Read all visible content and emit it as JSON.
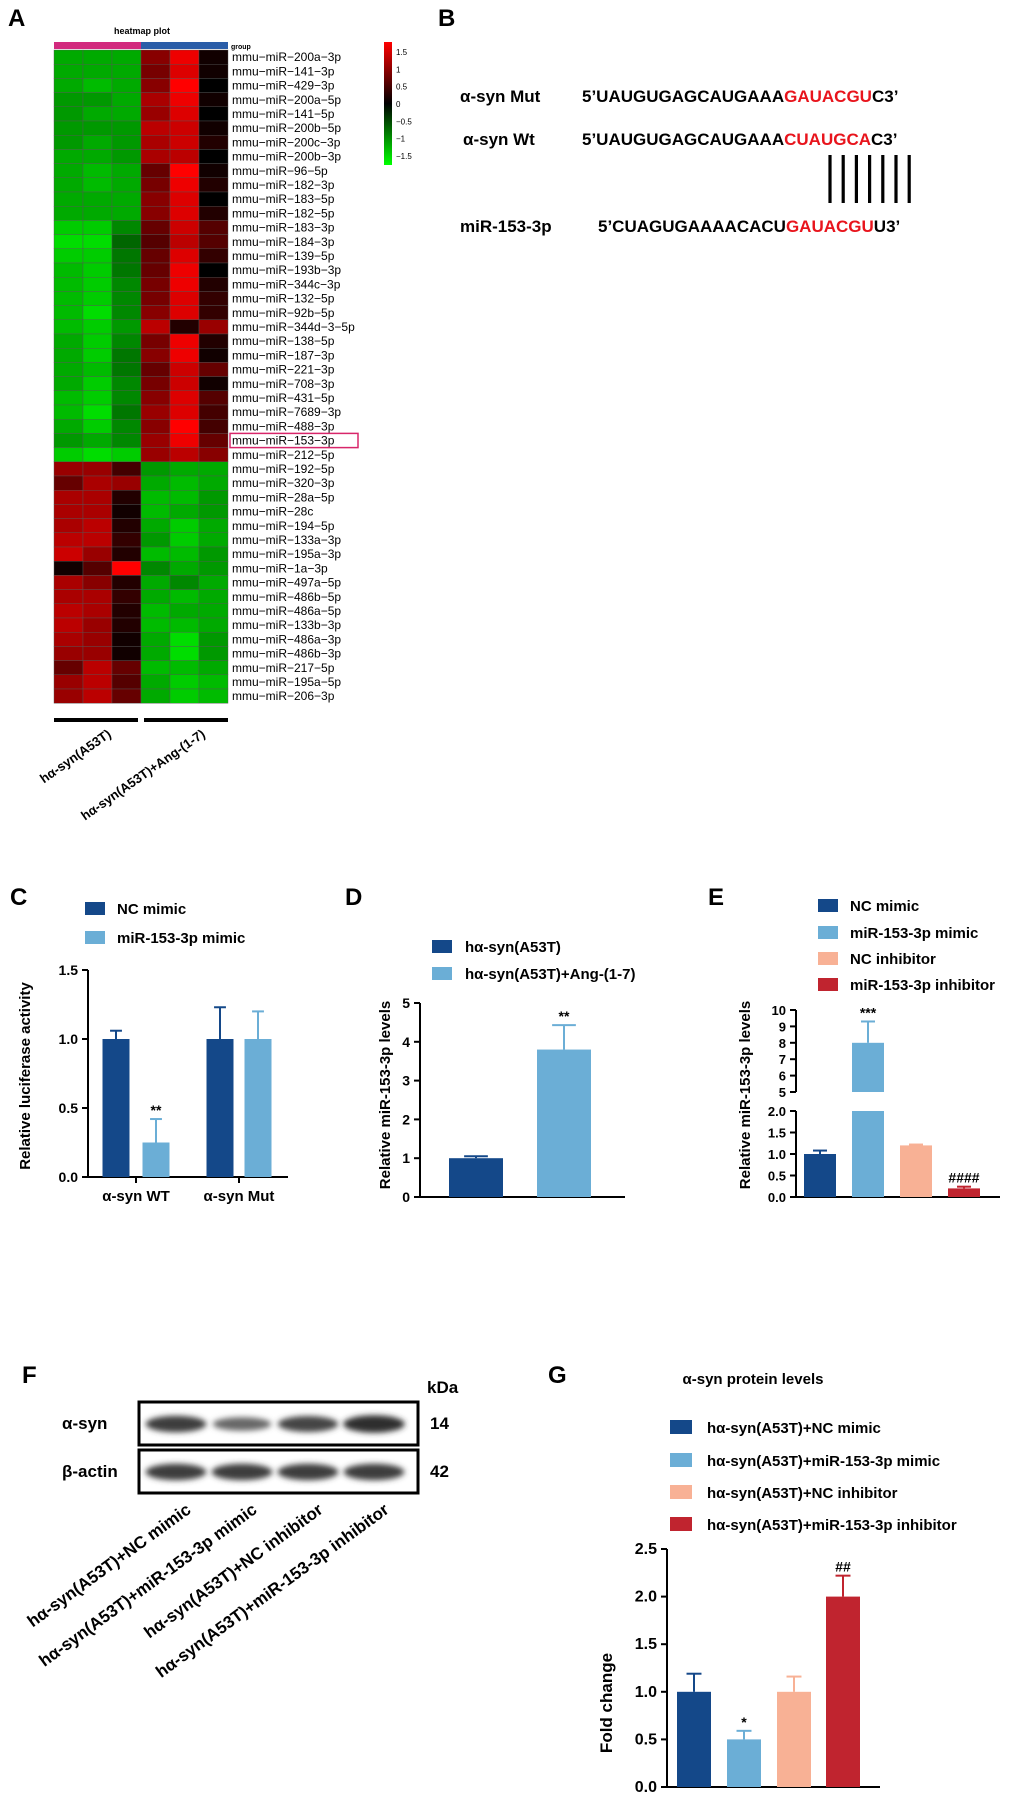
{
  "panels": {
    "A": "A",
    "B": "B",
    "C": "C",
    "D": "D",
    "E": "E",
    "F": "F",
    "G": "G"
  },
  "colors": {
    "dark_blue": "#144889",
    "light_blue": "#6BAED6",
    "salmon": "#F8B195",
    "crimson": "#C0242F",
    "seq_red": "#E8141C",
    "group_magenta": "#D22A7E",
    "group_blue": "#2A5DA8",
    "highlight": "#D8266A"
  },
  "chart_data": [
    {
      "id": "A",
      "type": "heatmap",
      "title": "heatmap plot",
      "group_label": "group",
      "groups": [
        "hα-syn(A53T)",
        "hα-syn(A53T)+Ang-(1-7)"
      ],
      "colorbar_ticks": [
        "1.5",
        "1",
        "0.5",
        "0",
        "−0.5",
        "−1",
        "−1.5"
      ],
      "range": [
        -1.5,
        1.5
      ],
      "highlight_row": "mmu−miR−153−3p",
      "rows": [
        {
          "name": "mmu−miR−200a−3p",
          "values": [
            -1.0,
            -1.0,
            -1.0,
            0.8,
            1.4,
            0.1
          ]
        },
        {
          "name": "mmu−miR−141−3p",
          "values": [
            -1.0,
            -1.0,
            -1.0,
            0.7,
            1.3,
            0.1
          ]
        },
        {
          "name": "mmu−miR−429−3p",
          "values": [
            -1.0,
            -1.1,
            -1.0,
            0.8,
            1.5,
            0.0
          ]
        },
        {
          "name": "mmu−miR−200a−5p",
          "values": [
            -0.9,
            -0.9,
            -1.0,
            1.0,
            1.4,
            0.1
          ]
        },
        {
          "name": "mmu−miR−141−5p",
          "values": [
            -0.9,
            -1.0,
            -1.0,
            0.9,
            1.3,
            0.0
          ]
        },
        {
          "name": "mmu−miR−200b−5p",
          "values": [
            -0.9,
            -0.9,
            -0.9,
            1.1,
            1.2,
            0.1
          ]
        },
        {
          "name": "mmu−miR−200c−3p",
          "values": [
            -0.9,
            -1.0,
            -0.9,
            1.0,
            1.2,
            0.2
          ]
        },
        {
          "name": "mmu−miR−200b−3p",
          "values": [
            -1.0,
            -1.0,
            -0.9,
            1.0,
            1.1,
            0.0
          ]
        },
        {
          "name": "mmu−miR−96−5p",
          "values": [
            -1.0,
            -1.1,
            -1.0,
            0.6,
            1.5,
            0.1
          ]
        },
        {
          "name": "mmu−miR−182−3p",
          "values": [
            -1.0,
            -1.1,
            -1.0,
            0.7,
            1.4,
            0.2
          ]
        },
        {
          "name": "mmu−miR−183−5p",
          "values": [
            -1.0,
            -1.0,
            -1.0,
            0.8,
            1.3,
            0.0
          ]
        },
        {
          "name": "mmu−miR−182−5p",
          "values": [
            -1.0,
            -1.0,
            -1.0,
            0.8,
            1.3,
            0.2
          ]
        },
        {
          "name": "mmu−miR−183−3p",
          "values": [
            -1.2,
            -1.2,
            -0.8,
            0.6,
            1.2,
            0.5
          ]
        },
        {
          "name": "mmu−miR−184−3p",
          "values": [
            -1.3,
            -1.3,
            -0.6,
            0.5,
            1.1,
            0.5
          ]
        },
        {
          "name": "mmu−miR−139−5p",
          "values": [
            -1.2,
            -1.2,
            -0.7,
            0.6,
            1.3,
            0.3
          ]
        },
        {
          "name": "mmu−miR−193b−3p",
          "values": [
            -1.1,
            -1.2,
            -0.7,
            0.6,
            1.4,
            0.0
          ]
        },
        {
          "name": "mmu−miR−344c−3p",
          "values": [
            -1.1,
            -1.2,
            -0.8,
            0.7,
            1.4,
            0.2
          ]
        },
        {
          "name": "mmu−miR−132−5p",
          "values": [
            -1.1,
            -1.2,
            -0.8,
            0.7,
            1.3,
            0.3
          ]
        },
        {
          "name": "mmu−miR−92b−5p",
          "values": [
            -1.1,
            -1.3,
            -0.8,
            0.8,
            1.3,
            0.3
          ]
        },
        {
          "name": "mmu−miR−344d−3−5p",
          "values": [
            -1.1,
            -1.2,
            -0.9,
            1.1,
            0.2,
            0.9
          ]
        },
        {
          "name": "mmu−miR−138−5p",
          "values": [
            -1.0,
            -1.2,
            -0.8,
            0.7,
            1.4,
            0.2
          ]
        },
        {
          "name": "mmu−miR−187−3p",
          "values": [
            -1.0,
            -1.2,
            -0.7,
            0.8,
            1.4,
            0.1
          ]
        },
        {
          "name": "mmu−miR−221−3p",
          "values": [
            -1.0,
            -1.1,
            -0.7,
            0.6,
            1.2,
            0.6
          ]
        },
        {
          "name": "mmu−miR−708−3p",
          "values": [
            -1.0,
            -1.2,
            -0.8,
            0.7,
            1.2,
            0.1
          ]
        },
        {
          "name": "mmu−miR−431−5p",
          "values": [
            -1.1,
            -1.2,
            -0.8,
            0.8,
            1.3,
            0.5
          ]
        },
        {
          "name": "mmu−miR−7689−3p",
          "values": [
            -1.1,
            -1.3,
            -0.7,
            0.9,
            1.3,
            0.4
          ]
        },
        {
          "name": "mmu−miR−488−3p",
          "values": [
            -1.0,
            -1.2,
            -0.8,
            0.8,
            1.5,
            0.4
          ]
        },
        {
          "name": "mmu−miR−153−3p",
          "values": [
            -0.9,
            -1.0,
            -0.8,
            0.9,
            1.4,
            0.6
          ]
        },
        {
          "name": "mmu−miR−212−5p",
          "values": [
            -1.2,
            -1.3,
            -1.2,
            0.9,
            1.1,
            0.8
          ]
        },
        {
          "name": "mmu−miR−192−5p",
          "values": [
            0.9,
            0.9,
            0.4,
            -0.9,
            -1.0,
            -1.0
          ]
        },
        {
          "name": "mmu−miR−320−3p",
          "values": [
            0.6,
            1.0,
            0.9,
            -1.0,
            -1.1,
            -1.0
          ]
        },
        {
          "name": "mmu−miR−28a−5p",
          "values": [
            1.0,
            1.0,
            0.2,
            -1.1,
            -1.1,
            -0.9
          ]
        },
        {
          "name": "mmu−miR−28c",
          "values": [
            1.0,
            1.0,
            0.1,
            -1.1,
            -1.0,
            -0.9
          ]
        },
        {
          "name": "mmu−miR−194−5p",
          "values": [
            1.0,
            1.1,
            0.2,
            -1.0,
            -1.2,
            -1.0
          ]
        },
        {
          "name": "mmu−miR−133a−3p",
          "values": [
            1.1,
            1.1,
            0.3,
            -0.9,
            -1.2,
            -1.0
          ]
        },
        {
          "name": "mmu−miR−195a−3p",
          "values": [
            1.2,
            0.9,
            0.2,
            -1.1,
            -1.1,
            -0.9
          ]
        },
        {
          "name": "mmu−miR−1a−3p",
          "values": [
            0.1,
            0.5,
            1.5,
            -0.8,
            -1.0,
            -0.9
          ]
        },
        {
          "name": "mmu−miR−497a−5p",
          "values": [
            1.0,
            0.8,
            0.2,
            -1.0,
            -0.8,
            -1.0
          ]
        },
        {
          "name": "mmu−miR−486b−5p",
          "values": [
            1.0,
            1.0,
            0.3,
            -1.0,
            -1.1,
            -1.0
          ]
        },
        {
          "name": "mmu−miR−486a−5p",
          "values": [
            1.1,
            1.0,
            0.2,
            -1.1,
            -1.0,
            -1.0
          ]
        },
        {
          "name": "mmu−miR−133b−3p",
          "values": [
            1.1,
            0.9,
            0.2,
            -1.1,
            -1.1,
            -1.0
          ]
        },
        {
          "name": "mmu−miR−486a−3p",
          "values": [
            1.0,
            0.9,
            0.1,
            -1.0,
            -1.3,
            -0.9
          ]
        },
        {
          "name": "mmu−miR−486b−3p",
          "values": [
            0.9,
            0.9,
            0.1,
            -1.0,
            -1.3,
            -0.9
          ]
        },
        {
          "name": "mmu−miR−217−5p",
          "values": [
            0.6,
            1.1,
            0.6,
            -1.1,
            -1.1,
            -1.0
          ]
        },
        {
          "name": "mmu−miR−195a−5p",
          "values": [
            0.9,
            1.1,
            0.5,
            -1.0,
            -1.2,
            -1.1
          ]
        },
        {
          "name": "mmu−miR−206−3p",
          "values": [
            0.9,
            1.1,
            0.6,
            -1.0,
            -1.2,
            -1.1
          ]
        }
      ]
    },
    {
      "id": "B",
      "type": "table",
      "lines": [
        {
          "label": "α-syn Mut",
          "prefix": "5’UAUGUGAGCAUGAAA",
          "highlight": "GAUACGU",
          "suffix": "C3’"
        },
        {
          "label": "α-syn Wt",
          "prefix": "5’UAUGUGAGCAUGAAA",
          "highlight": "CUAUGCA",
          "suffix": "C3’"
        },
        {
          "label": "miR-153-3p",
          "prefix": "5’CUAGUGAAAACACU",
          "highlight": "GAUACGU",
          "suffix": "U3’"
        }
      ],
      "pair_lines": 7
    },
    {
      "id": "C",
      "type": "bar",
      "title": "",
      "categories": [
        "α-syn WT",
        "α-syn Mut"
      ],
      "series": [
        {
          "name": "NC mimic",
          "values": [
            1.0,
            1.0
          ],
          "errors": [
            0.06,
            0.23
          ],
          "marks": [
            "",
            ""
          ]
        },
        {
          "name": "miR-153-3p mimic",
          "values": [
            0.25,
            1.0
          ],
          "errors": [
            0.17,
            0.2
          ],
          "marks": [
            "**",
            ""
          ]
        }
      ],
      "xlabel": "",
      "ylabel": "Relative luciferase activity",
      "ylim": [
        0,
        1.5
      ],
      "yticks": [
        "0.0",
        "0.5",
        "1.0",
        "1.5"
      ]
    },
    {
      "id": "D",
      "type": "bar",
      "title": "",
      "categories": [
        "hα-syn(A53T)",
        "hα-syn(A53T)+Ang-(1-7)"
      ],
      "values": [
        1.0,
        3.8
      ],
      "errors": [
        0.05,
        0.63
      ],
      "marks": [
        "",
        "**"
      ],
      "xlabel": "",
      "ylabel": "Relative miR-153-3p levels",
      "ylim": [
        0,
        5
      ],
      "yticks": [
        "0",
        "1",
        "2",
        "3",
        "4",
        "5"
      ]
    },
    {
      "id": "E",
      "type": "bar",
      "title": "",
      "categories": [
        "NC mimic",
        "miR-153-3p mimic",
        "NC inhibitor",
        "miR-153-3p inhibitor"
      ],
      "values": [
        1.0,
        8.0,
        1.2,
        0.2
      ],
      "errors": [
        0.08,
        1.3,
        0.02,
        0.04
      ],
      "marks": [
        "",
        "***",
        "",
        "####"
      ],
      "xlabel": "",
      "ylabel": "Relative miR-153-3p levels",
      "axis_break": [
        2.0,
        5.0
      ],
      "ylim": [
        0,
        10
      ],
      "yticks_lower": [
        "0.0",
        "0.5",
        "1.0",
        "1.5",
        "2.0"
      ],
      "yticks_upper": [
        "5",
        "6",
        "7",
        "8",
        "9",
        "10"
      ]
    },
    {
      "id": "G",
      "type": "bar",
      "title": "α-syn protein levels",
      "categories": [
        "hα-syn(A53T)+NC mimic",
        "hα-syn(A53T)+miR-153-3p mimic",
        "hα-syn(A53T)+NC inhibitor",
        "hα-syn(A53T)+miR-153-3p inhibitor"
      ],
      "values": [
        1.0,
        0.5,
        1.0,
        2.0
      ],
      "errors": [
        0.19,
        0.09,
        0.16,
        0.22
      ],
      "marks": [
        "",
        "*",
        "",
        "##"
      ],
      "xlabel": "",
      "ylabel": "Fold change",
      "ylim": [
        0,
        2.5
      ],
      "yticks": [
        "0.0",
        "0.5",
        "1.0",
        "1.5",
        "2.0",
        "2.5"
      ]
    }
  ],
  "blot": {
    "unit": "kDa",
    "rows": [
      {
        "label": "α-syn",
        "kda": "14",
        "intensities": [
          0.85,
          0.55,
          0.8,
          0.95
        ]
      },
      {
        "label": "β-actin",
        "kda": "42",
        "intensities": [
          0.85,
          0.85,
          0.85,
          0.85
        ]
      }
    ],
    "lanes": [
      "hα-syn(A53T)+NC mimic",
      "hα-syn(A53T)+miR-153-3p mimic",
      "hα-syn(A53T)+NC inhibitor",
      "hα-syn(A53T)+miR-153-3p inhibitor"
    ]
  }
}
